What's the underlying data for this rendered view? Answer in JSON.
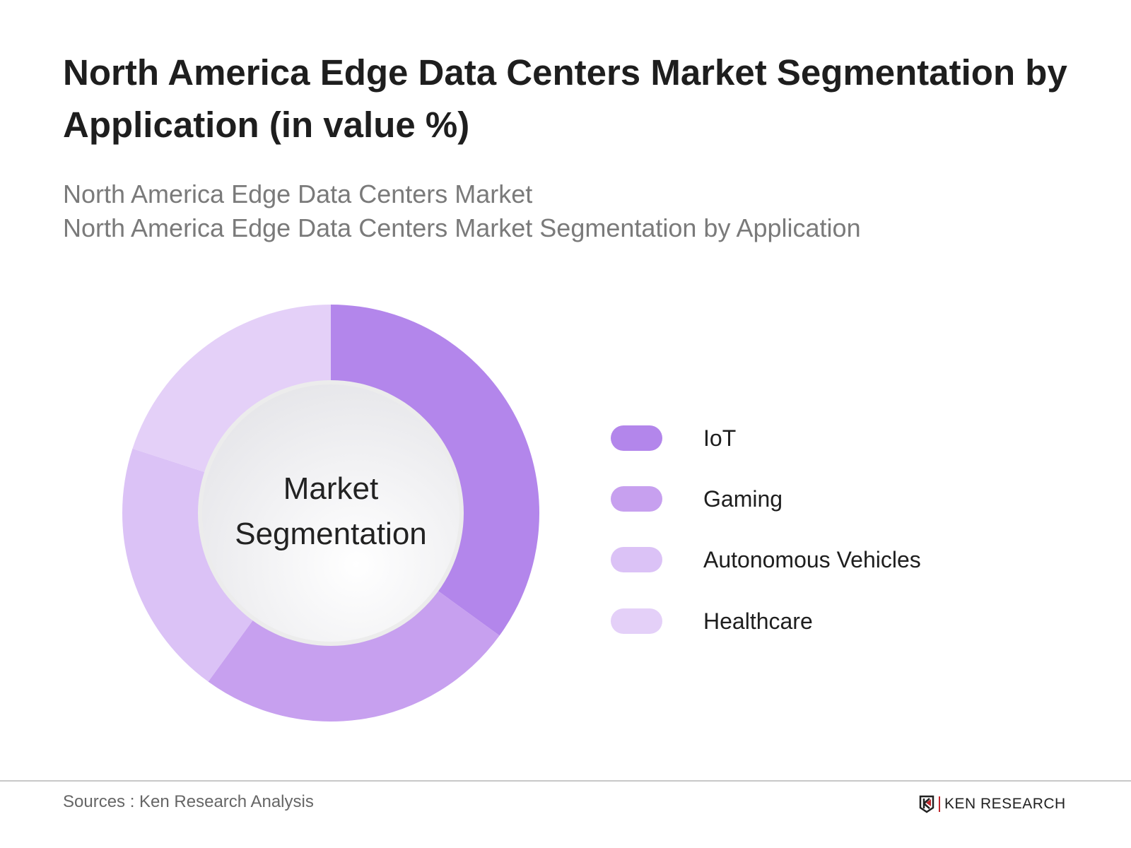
{
  "title": "North America Edge Data Centers Market Segmentation by Application (in value %)",
  "subtitle_line1": "North America Edge Data Centers Market",
  "subtitle_line2": "North America Edge Data Centers Market Segmentation by Application",
  "center_label_line1": "Market",
  "center_label_line2": "Segmentation",
  "footer": {
    "sources": "Sources : Ken Research Analysis",
    "logo_text": "KEN RESEARCH"
  },
  "chart_data": {
    "type": "pie",
    "variant": "donut",
    "categories": [
      "IoT",
      "Gaming",
      "Autonomous Vehicles",
      "Healthcare"
    ],
    "values": [
      35,
      25,
      20,
      20
    ],
    "unit": "%",
    "colors": [
      "#b386eb",
      "#c7a0ef",
      "#dbc2f6",
      "#e4d0f8"
    ],
    "legend_position": "right",
    "start_angle": "12 o'clock, clockwise"
  }
}
